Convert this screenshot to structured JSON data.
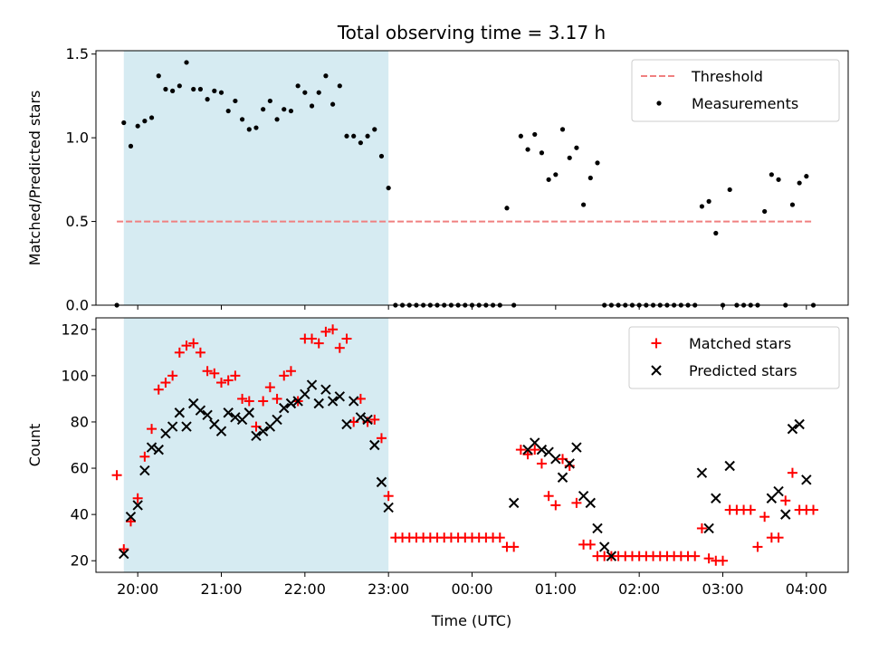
{
  "figure": {
    "title": "Total observing time = 3.17 h",
    "xlabel": "Time (UTC)"
  },
  "chart_data": [
    {
      "type": "scatter",
      "title": "Total observing time = 3.17 h",
      "xlabel": "",
      "ylabel": "Matched/Predicted stars",
      "x_is_time": true,
      "xlim": [
        "19:30",
        "04:30"
      ],
      "ylim": [
        0,
        1.52
      ],
      "yticks": [
        0.0,
        0.5,
        1.0,
        1.5
      ],
      "ytick_labels": [
        "0.0",
        "0.5",
        "1.0",
        "1.5"
      ],
      "shaded_span": [
        "19:50",
        "23:00"
      ],
      "grid": false,
      "legend": {
        "placement": "top-right",
        "entries": [
          "Threshold",
          "Measurements"
        ]
      },
      "threshold": {
        "name": "Threshold",
        "y": 0.5,
        "x_range": [
          "19:45",
          "04:05"
        ],
        "color": "#f08080",
        "style": "dashed"
      },
      "series": [
        {
          "name": "Measurements",
          "marker": "dot",
          "color": "#000000",
          "x": [
            "19:45",
            "19:50",
            "19:55",
            "20:00",
            "20:05",
            "20:10",
            "20:15",
            "20:20",
            "20:25",
            "20:30",
            "20:35",
            "20:40",
            "20:45",
            "20:50",
            "20:55",
            "21:00",
            "21:05",
            "21:10",
            "21:15",
            "21:20",
            "21:25",
            "21:30",
            "21:35",
            "21:40",
            "21:45",
            "21:50",
            "21:55",
            "22:00",
            "22:05",
            "22:10",
            "22:15",
            "22:20",
            "22:25",
            "22:30",
            "22:35",
            "22:40",
            "22:45",
            "22:50",
            "22:55",
            "23:00",
            "23:05",
            "23:10",
            "23:15",
            "23:20",
            "23:25",
            "23:30",
            "23:35",
            "23:40",
            "23:45",
            "23:50",
            "23:55",
            "00:00",
            "00:05",
            "00:10",
            "00:15",
            "00:20",
            "00:25",
            "00:30",
            "00:35",
            "00:40",
            "00:45",
            "00:50",
            "00:55",
            "01:00",
            "01:05",
            "01:10",
            "01:15",
            "01:20",
            "01:25",
            "01:30",
            "01:35",
            "01:40",
            "01:45",
            "01:50",
            "01:55",
            "02:00",
            "02:05",
            "02:10",
            "02:15",
            "02:20",
            "02:25",
            "02:30",
            "02:35",
            "02:40",
            "02:45",
            "02:50",
            "02:55",
            "03:00",
            "03:05",
            "03:10",
            "03:15",
            "03:20",
            "03:25",
            "03:30",
            "03:35",
            "03:40",
            "03:45",
            "03:50",
            "03:55",
            "04:00",
            "04:05"
          ],
          "y": [
            0.0,
            1.09,
            0.95,
            1.07,
            1.1,
            1.12,
            1.37,
            1.29,
            1.28,
            1.31,
            1.45,
            1.29,
            1.29,
            1.23,
            1.28,
            1.27,
            1.16,
            1.22,
            1.11,
            1.05,
            1.06,
            1.17,
            1.22,
            1.11,
            1.17,
            1.16,
            1.31,
            1.27,
            1.19,
            1.27,
            1.37,
            1.2,
            1.31,
            1.01,
            1.01,
            0.97,
            1.01,
            1.05,
            0.89,
            0.7,
            0.0,
            0.0,
            0.0,
            0.0,
            0.0,
            0.0,
            0.0,
            0.0,
            0.0,
            0.0,
            0.0,
            0.0,
            0.0,
            0.0,
            0.0,
            0.0,
            0.58,
            0.0,
            1.01,
            0.93,
            1.02,
            0.91,
            0.75,
            0.78,
            1.05,
            0.88,
            0.94,
            0.6,
            0.76,
            0.85,
            0.0,
            0.0,
            0.0,
            0.0,
            0.0,
            0.0,
            0.0,
            0.0,
            0.0,
            0.0,
            0.0,
            0.0,
            0.0,
            0.0,
            0.59,
            0.62,
            0.43,
            0.0,
            0.69,
            0.0,
            0.0,
            0.0,
            0.0,
            0.56,
            0.78,
            0.75,
            0.0,
            0.6,
            0.73,
            0.77,
            0.0
          ]
        }
      ]
    },
    {
      "type": "scatter",
      "xlabel": "Time (UTC)",
      "ylabel": "Count",
      "x_is_time": true,
      "xlim": [
        "19:30",
        "04:30"
      ],
      "ylim": [
        15,
        125
      ],
      "yticks": [
        20,
        40,
        60,
        80,
        100,
        120
      ],
      "ytick_labels": [
        "20",
        "40",
        "60",
        "80",
        "100",
        "120"
      ],
      "xticks": [
        "20:00",
        "21:00",
        "22:00",
        "23:00",
        "00:00",
        "01:00",
        "02:00",
        "03:00",
        "04:00"
      ],
      "xtick_labels": [
        "20:00",
        "21:00",
        "22:00",
        "23:00",
        "00:00",
        "01:00",
        "02:00",
        "03:00",
        "04:00"
      ],
      "shaded_span": [
        "19:50",
        "23:00"
      ],
      "grid": false,
      "legend": {
        "placement": "top-right",
        "entries": [
          "Matched stars",
          "Predicted stars"
        ]
      },
      "series": [
        {
          "name": "Matched stars",
          "marker": "plus",
          "color": "#ff0000",
          "x": [
            "19:45",
            "19:50",
            "19:55",
            "20:00",
            "20:05",
            "20:10",
            "20:15",
            "20:20",
            "20:25",
            "20:30",
            "20:35",
            "20:40",
            "20:45",
            "20:50",
            "20:55",
            "21:00",
            "21:05",
            "21:10",
            "21:15",
            "21:20",
            "21:25",
            "21:30",
            "21:35",
            "21:40",
            "21:45",
            "21:50",
            "21:55",
            "22:00",
            "22:05",
            "22:10",
            "22:15",
            "22:20",
            "22:25",
            "22:30",
            "22:35",
            "22:40",
            "22:45",
            "22:50",
            "22:55",
            "23:00",
            "23:05",
            "23:10",
            "23:15",
            "23:20",
            "23:25",
            "23:30",
            "23:35",
            "23:40",
            "23:45",
            "23:50",
            "23:55",
            "00:00",
            "00:05",
            "00:10",
            "00:15",
            "00:20",
            "00:25",
            "00:30",
            "00:35",
            "00:40",
            "00:45",
            "00:50",
            "00:55",
            "01:00",
            "01:05",
            "01:10",
            "01:15",
            "01:20",
            "01:25",
            "01:30",
            "01:35",
            "01:40",
            "01:45",
            "01:50",
            "01:55",
            "02:00",
            "02:05",
            "02:10",
            "02:15",
            "02:20",
            "02:25",
            "02:30",
            "02:35",
            "02:40",
            "02:45",
            "02:50",
            "02:55",
            "03:00",
            "03:05",
            "03:10",
            "03:15",
            "03:20",
            "03:25",
            "03:30",
            "03:35",
            "03:40",
            "03:45",
            "03:50",
            "03:55",
            "04:00",
            "04:05"
          ],
          "y": [
            57,
            25,
            37,
            47,
            65,
            77,
            94,
            97,
            100,
            110,
            113,
            114,
            110,
            102,
            101,
            97,
            98,
            100,
            90,
            89,
            78,
            89,
            95,
            90,
            100,
            102,
            89,
            116,
            116,
            114,
            119,
            120,
            112,
            116,
            80,
            90,
            80,
            81,
            73,
            48,
            30,
            30,
            30,
            30,
            30,
            30,
            30,
            30,
            30,
            30,
            30,
            30,
            30,
            30,
            30,
            30,
            26,
            26,
            68,
            66,
            68,
            62,
            48,
            44,
            64,
            61,
            45,
            27,
            27,
            22,
            22,
            22,
            22,
            22,
            22,
            22,
            22,
            22,
            22,
            22,
            22,
            22,
            22,
            22,
            34,
            21,
            20,
            20,
            42,
            42,
            42,
            42,
            26,
            39,
            30,
            30,
            46,
            58,
            42,
            42,
            42
          ]
        },
        {
          "name": "Predicted stars",
          "marker": "x",
          "color": "#000000",
          "x": [
            "19:50",
            "19:55",
            "20:00",
            "20:05",
            "20:10",
            "20:15",
            "20:20",
            "20:25",
            "20:30",
            "20:35",
            "20:40",
            "20:45",
            "20:50",
            "20:55",
            "21:00",
            "21:05",
            "21:10",
            "21:15",
            "21:20",
            "21:25",
            "21:30",
            "21:35",
            "21:40",
            "21:45",
            "21:50",
            "21:55",
            "22:00",
            "22:05",
            "22:10",
            "22:15",
            "22:20",
            "22:25",
            "22:30",
            "22:35",
            "22:40",
            "22:45",
            "22:50",
            "22:55",
            "23:00",
            "00:30",
            "00:40",
            "00:45",
            "00:50",
            "00:55",
            "01:00",
            "01:05",
            "01:10",
            "01:15",
            "01:20",
            "01:25",
            "01:30",
            "01:35",
            "01:40",
            "02:45",
            "02:50",
            "02:55",
            "03:05",
            "03:35",
            "03:40",
            "03:45",
            "03:50",
            "03:55",
            "04:00"
          ],
          "y": [
            23,
            39,
            44,
            59,
            69,
            68,
            75,
            78,
            84,
            78,
            88,
            85,
            83,
            79,
            76,
            84,
            82,
            81,
            84,
            74,
            76,
            78,
            81,
            86,
            88,
            89,
            92,
            96,
            88,
            94,
            89,
            91,
            79,
            89,
            82,
            81,
            70,
            54,
            43,
            45,
            68,
            71,
            68,
            67,
            64,
            56,
            62,
            69,
            48,
            45,
            34,
            26,
            22,
            58,
            34,
            47,
            61,
            47,
            50,
            40,
            77,
            79,
            55
          ]
        }
      ]
    }
  ]
}
